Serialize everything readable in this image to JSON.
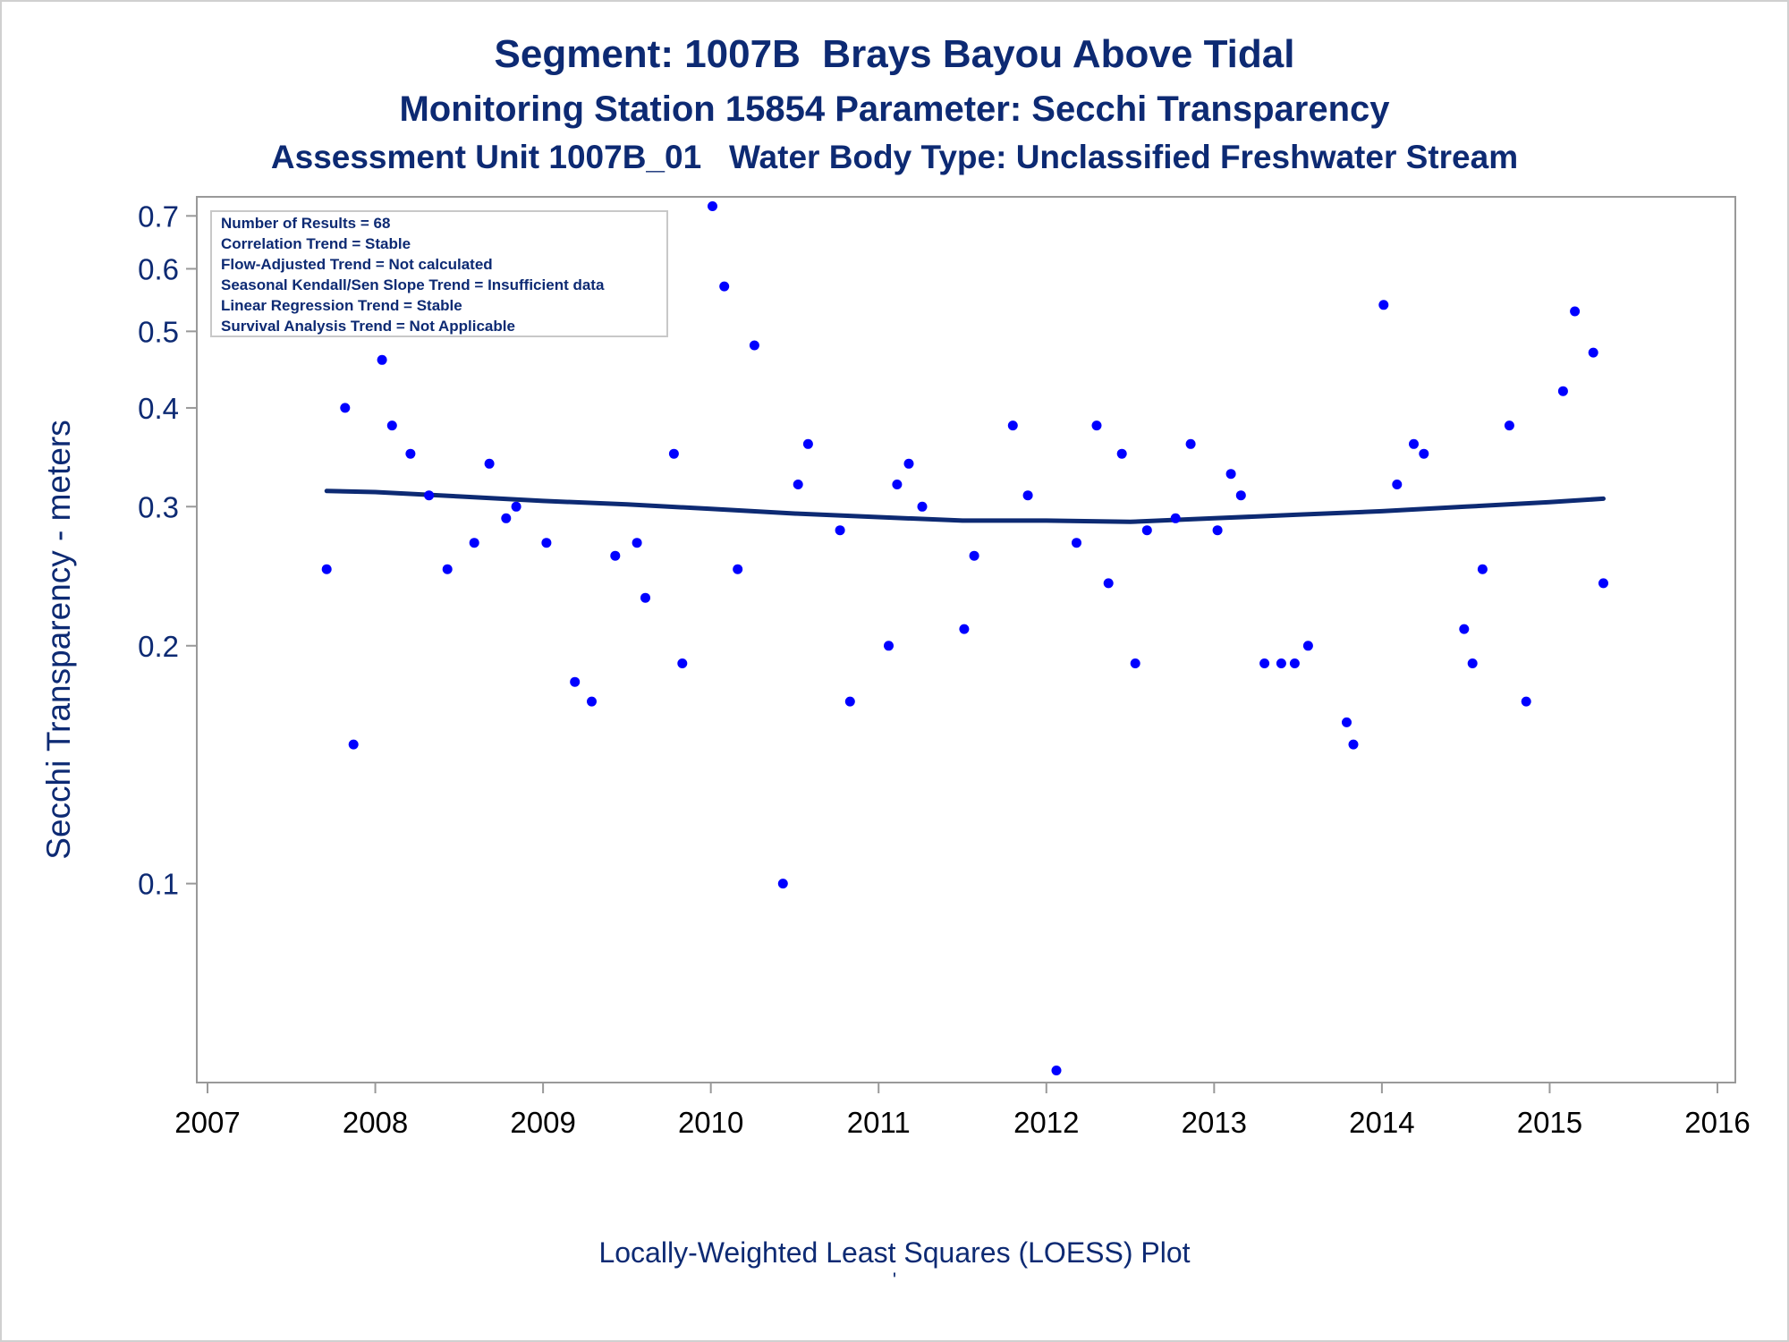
{
  "titles": {
    "line1": "Segment: 1007B  Brays Bayou Above Tidal",
    "line2": "Monitoring Station 15854 Parameter: Secchi Transparency",
    "line3": "Assessment Unit 1007B_01   Water Body Type: Unclassified Freshwater Stream"
  },
  "footnote": "Locally-Weighted Least Squares (LOESS) Plot",
  "footnote_mark": "'",
  "colors": {
    "title": "#0d2a73",
    "points": "#0000ff",
    "loess": "#0d2a73",
    "axis": "#999999"
  },
  "chart_data": {
    "type": "scatter",
    "ylabel": "Secchi Transparency - meters",
    "xlabel": "",
    "y_scale": "log",
    "xlim": [
      2007,
      2016
    ],
    "ylim": [
      0.056,
      0.74
    ],
    "x_ticks": [
      "2007",
      "2008",
      "2009",
      "2010",
      "2011",
      "2012",
      "2013",
      "2014",
      "2015",
      "2016"
    ],
    "y_ticks": [
      "0.1",
      "0.2",
      "0.3",
      "0.4",
      "0.5",
      "0.6",
      "0.7"
    ],
    "y_tick_values": [
      0.1,
      0.2,
      0.3,
      0.4,
      0.5,
      0.6,
      0.7
    ],
    "grid": false,
    "legend_position": "top-left",
    "stats": [
      "Number of Results = 68",
      "Correlation Trend = Stable",
      "Flow-Adjusted Trend = Not calculated",
      "Seasonal Kendall/Sen Slope Trend = Insufficient data",
      "Linear Regression Trend = Stable",
      "Survival Analysis Trend = Not Applicable"
    ],
    "series": [
      {
        "type": "scatter",
        "points": [
          [
            2007.71,
            0.25
          ],
          [
            2007.82,
            0.4
          ],
          [
            2007.87,
            0.15
          ],
          [
            2008.04,
            0.46
          ],
          [
            2008.1,
            0.38
          ],
          [
            2008.21,
            0.35
          ],
          [
            2008.32,
            0.31
          ],
          [
            2008.43,
            0.25
          ],
          [
            2008.59,
            0.27
          ],
          [
            2008.68,
            0.34
          ],
          [
            2008.78,
            0.29
          ],
          [
            2008.84,
            0.3
          ],
          [
            2009.02,
            0.27
          ],
          [
            2009.19,
            0.18
          ],
          [
            2009.29,
            0.17
          ],
          [
            2009.43,
            0.26
          ],
          [
            2009.56,
            0.27
          ],
          [
            2009.61,
            0.23
          ],
          [
            2009.78,
            0.35
          ],
          [
            2009.83,
            0.19
          ],
          [
            2010.01,
            0.72
          ],
          [
            2010.08,
            0.57
          ],
          [
            2010.16,
            0.25
          ],
          [
            2010.26,
            0.48
          ],
          [
            2010.43,
            0.1
          ],
          [
            2010.52,
            0.32
          ],
          [
            2010.58,
            0.36
          ],
          [
            2010.77,
            0.28
          ],
          [
            2010.83,
            0.17
          ],
          [
            2011.06,
            0.2
          ],
          [
            2011.11,
            0.32
          ],
          [
            2011.18,
            0.34
          ],
          [
            2011.26,
            0.3
          ],
          [
            2011.51,
            0.21
          ],
          [
            2011.57,
            0.26
          ],
          [
            2011.8,
            0.38
          ],
          [
            2011.89,
            0.31
          ],
          [
            2012.06,
            0.058
          ],
          [
            2012.18,
            0.27
          ],
          [
            2012.3,
            0.38
          ],
          [
            2012.37,
            0.24
          ],
          [
            2012.45,
            0.35
          ],
          [
            2012.53,
            0.19
          ],
          [
            2012.6,
            0.28
          ],
          [
            2012.77,
            0.29
          ],
          [
            2012.86,
            0.36
          ],
          [
            2013.02,
            0.28
          ],
          [
            2013.1,
            0.33
          ],
          [
            2013.16,
            0.31
          ],
          [
            2013.3,
            0.19
          ],
          [
            2013.4,
            0.19
          ],
          [
            2013.48,
            0.19
          ],
          [
            2013.56,
            0.2
          ],
          [
            2013.79,
            0.16
          ],
          [
            2013.83,
            0.15
          ],
          [
            2014.01,
            0.54
          ],
          [
            2014.09,
            0.32
          ],
          [
            2014.19,
            0.36
          ],
          [
            2014.25,
            0.35
          ],
          [
            2014.49,
            0.21
          ],
          [
            2014.54,
            0.19
          ],
          [
            2014.6,
            0.25
          ],
          [
            2014.76,
            0.38
          ],
          [
            2014.86,
            0.17
          ],
          [
            2015.08,
            0.42
          ],
          [
            2015.15,
            0.53
          ],
          [
            2015.26,
            0.47
          ],
          [
            2015.32,
            0.24
          ]
        ]
      },
      {
        "type": "line",
        "points": [
          [
            2007.71,
            0.314
          ],
          [
            2008.0,
            0.313
          ],
          [
            2008.5,
            0.309
          ],
          [
            2009.0,
            0.305
          ],
          [
            2009.5,
            0.302
          ],
          [
            2010.0,
            0.298
          ],
          [
            2010.5,
            0.294
          ],
          [
            2011.0,
            0.291
          ],
          [
            2011.5,
            0.288
          ],
          [
            2012.0,
            0.288
          ],
          [
            2012.5,
            0.287
          ],
          [
            2013.0,
            0.29
          ],
          [
            2013.5,
            0.293
          ],
          [
            2014.0,
            0.296
          ],
          [
            2014.5,
            0.3
          ],
          [
            2015.0,
            0.304
          ],
          [
            2015.32,
            0.307
          ]
        ]
      }
    ]
  }
}
